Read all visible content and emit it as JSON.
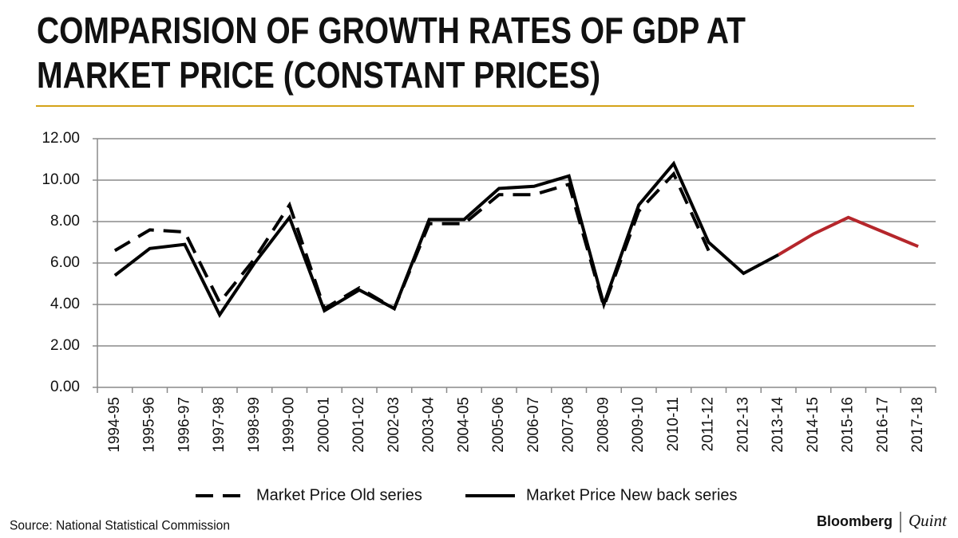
{
  "chart_data": {
    "type": "line",
    "title": [
      "COMPARISION OF GROWTH RATES OF GDP AT",
      "MARKET PRICE (CONSTANT PRICES)"
    ],
    "categories": [
      "1994-95",
      "1995-96",
      "1996-97",
      "1997-98",
      "1998-99",
      "1999-00",
      "2000-01",
      "2001-02",
      "2002-03",
      "2003-04",
      "2004-05",
      "2005-06",
      "2006-07",
      "2007-08",
      "2008-09",
      "2009-10",
      "2010-11",
      "2011-12",
      "2012-13",
      "2013-14",
      "2014-15",
      "2015-16",
      "2016-17",
      "2017-18"
    ],
    "series": [
      {
        "name": "Market Price Old series",
        "color": "#000000",
        "dash": true,
        "values": [
          6.6,
          7.6,
          7.5,
          4.1,
          6.2,
          8.8,
          3.8,
          4.8,
          3.8,
          7.9,
          7.9,
          9.3,
          9.3,
          9.8,
          3.9,
          8.5,
          10.3,
          6.6,
          null,
          null,
          null,
          null,
          null,
          null
        ]
      },
      {
        "name": "Market Price New back series",
        "color": "#000000",
        "dash": false,
        "values": [
          5.4,
          6.7,
          6.9,
          3.5,
          6.0,
          8.2,
          3.7,
          4.7,
          3.8,
          8.1,
          8.1,
          9.6,
          9.7,
          10.2,
          4.0,
          8.8,
          10.8,
          7.0,
          5.5,
          6.4,
          null,
          null,
          null,
          null
        ]
      },
      {
        "color": "#b5262b",
        "dash": false,
        "values": [
          null,
          null,
          null,
          null,
          null,
          null,
          null,
          null,
          null,
          null,
          null,
          null,
          null,
          null,
          null,
          null,
          null,
          null,
          null,
          6.4,
          7.4,
          8.2,
          7.5,
          6.8
        ]
      }
    ],
    "ylim": [
      0,
      12
    ],
    "yticks": [
      {
        "value": 0,
        "label": "0.00"
      },
      {
        "value": 2,
        "label": "2.00"
      },
      {
        "value": 4,
        "label": "4.00"
      },
      {
        "value": 6,
        "label": "6.00"
      },
      {
        "value": 8,
        "label": "8.00"
      },
      {
        "value": 10,
        "label": "10.00"
      },
      {
        "value": 12,
        "label": "12.00"
      }
    ],
    "grid": true,
    "source": "Source: National Statistical Commission",
    "brand": [
      "Bloomberg",
      "Quint"
    ]
  }
}
